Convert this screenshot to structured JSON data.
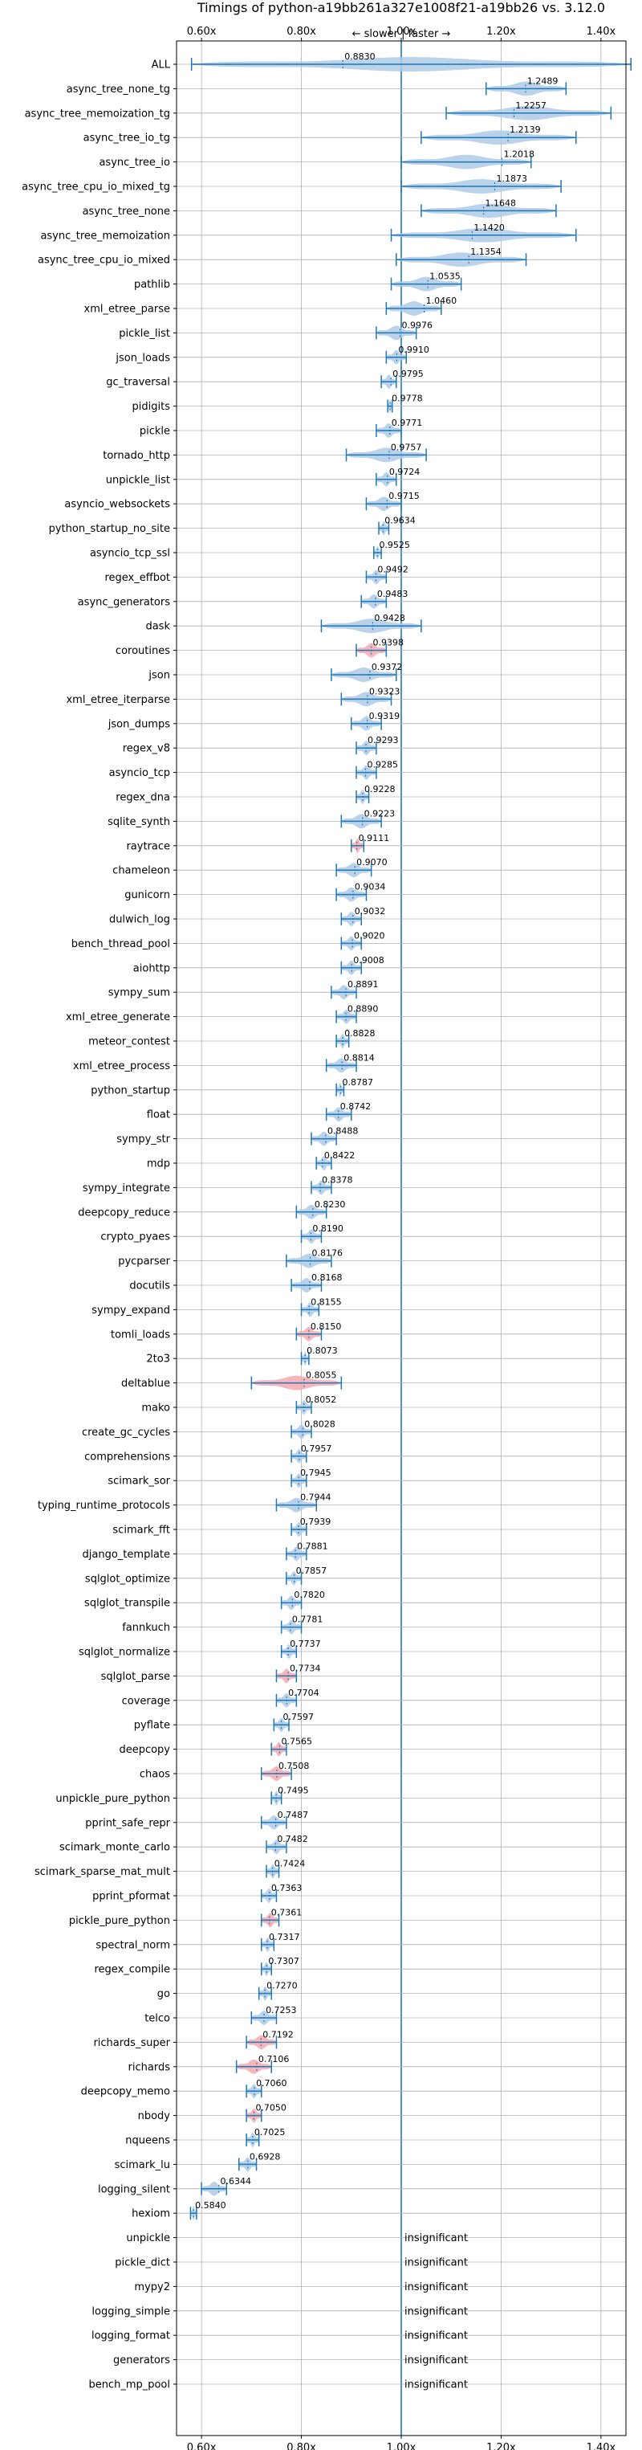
{
  "chart_data": {
    "type": "violin",
    "title": "Timings of python-a19bb261a327e1008f21-a19bb26 vs. 3.12.0",
    "direction_label": "← slower | faster →",
    "xlim": [
      0.55,
      1.45
    ],
    "xticks": [
      "0.60x",
      "0.80x",
      "1.00x",
      "1.20x",
      "1.40x"
    ],
    "xtick_values": [
      0.6,
      0.8,
      1.0,
      1.2,
      1.4
    ],
    "reference_line": 1.0,
    "grid": true,
    "colors": {
      "faster": "#aecbe6",
      "slower": "#f4a9b0",
      "line": "#1f77b4",
      "significant_line": "#1f77b4"
    },
    "insignificant_label": "insignificant",
    "benchmarks": [
      {
        "name": "ALL",
        "value": 0.883,
        "label": "0.8830",
        "lo": 0.58,
        "hi": 1.46,
        "color": "blue"
      },
      {
        "name": "async_tree_none_tg",
        "value": 1.2489,
        "label": "1.2489",
        "lo": 1.17,
        "hi": 1.33,
        "color": "blue"
      },
      {
        "name": "async_tree_memoization_tg",
        "value": 1.2257,
        "label": "1.2257",
        "lo": 1.09,
        "hi": 1.42,
        "color": "blue"
      },
      {
        "name": "async_tree_io_tg",
        "value": 1.2139,
        "label": "1.2139",
        "lo": 1.04,
        "hi": 1.35,
        "color": "blue"
      },
      {
        "name": "async_tree_io",
        "value": 1.2018,
        "label": "1.2018",
        "lo": 1.0,
        "hi": 1.26,
        "color": "blue"
      },
      {
        "name": "async_tree_cpu_io_mixed_tg",
        "value": 1.1873,
        "label": "1.1873",
        "lo": 1.0,
        "hi": 1.32,
        "color": "blue"
      },
      {
        "name": "async_tree_none",
        "value": 1.1648,
        "label": "1.1648",
        "lo": 1.04,
        "hi": 1.31,
        "color": "blue"
      },
      {
        "name": "async_tree_memoization",
        "value": 1.142,
        "label": "1.1420",
        "lo": 0.98,
        "hi": 1.35,
        "color": "blue"
      },
      {
        "name": "async_tree_cpu_io_mixed",
        "value": 1.1354,
        "label": "1.1354",
        "lo": 0.99,
        "hi": 1.25,
        "color": "blue"
      },
      {
        "name": "pathlib",
        "value": 1.0535,
        "label": "1.0535",
        "lo": 0.98,
        "hi": 1.12,
        "color": "blue"
      },
      {
        "name": "xml_etree_parse",
        "value": 1.046,
        "label": "1.0460",
        "lo": 0.97,
        "hi": 1.08,
        "color": "blue"
      },
      {
        "name": "pickle_list",
        "value": 0.9976,
        "label": "0.9976",
        "lo": 0.95,
        "hi": 1.03,
        "color": "blue"
      },
      {
        "name": "json_loads",
        "value": 0.991,
        "label": "0.9910",
        "lo": 0.97,
        "hi": 1.01,
        "color": "blue"
      },
      {
        "name": "gc_traversal",
        "value": 0.9795,
        "label": "0.9795",
        "lo": 0.96,
        "hi": 0.99,
        "color": "blue"
      },
      {
        "name": "pidigits",
        "value": 0.9778,
        "label": "0.9778",
        "lo": 0.973,
        "hi": 0.982,
        "color": "blue"
      },
      {
        "name": "pickle",
        "value": 0.9771,
        "label": "0.9771",
        "lo": 0.95,
        "hi": 1.0,
        "color": "blue"
      },
      {
        "name": "tornado_http",
        "value": 0.9757,
        "label": "0.9757",
        "lo": 0.89,
        "hi": 1.05,
        "color": "blue"
      },
      {
        "name": "unpickle_list",
        "value": 0.9724,
        "label": "0.9724",
        "lo": 0.95,
        "hi": 0.99,
        "color": "blue"
      },
      {
        "name": "asyncio_websockets",
        "value": 0.9715,
        "label": "0.9715",
        "lo": 0.93,
        "hi": 1.0,
        "color": "blue"
      },
      {
        "name": "python_startup_no_site",
        "value": 0.9634,
        "label": "0.9634",
        "lo": 0.955,
        "hi": 0.975,
        "color": "blue"
      },
      {
        "name": "asyncio_tcp_ssl",
        "value": 0.9525,
        "label": "0.9525",
        "lo": 0.945,
        "hi": 0.96,
        "color": "blue"
      },
      {
        "name": "regex_effbot",
        "value": 0.9492,
        "label": "0.9492",
        "lo": 0.93,
        "hi": 0.97,
        "color": "blue"
      },
      {
        "name": "async_generators",
        "value": 0.9483,
        "label": "0.9483",
        "lo": 0.92,
        "hi": 0.97,
        "color": "blue"
      },
      {
        "name": "dask",
        "value": 0.9428,
        "label": "0.9428",
        "lo": 0.84,
        "hi": 1.04,
        "color": "blue"
      },
      {
        "name": "coroutines",
        "value": 0.9398,
        "label": "0.9398",
        "lo": 0.91,
        "hi": 0.97,
        "color": "red"
      },
      {
        "name": "json",
        "value": 0.9372,
        "label": "0.9372",
        "lo": 0.86,
        "hi": 0.99,
        "color": "blue"
      },
      {
        "name": "xml_etree_iterparse",
        "value": 0.9323,
        "label": "0.9323",
        "lo": 0.88,
        "hi": 0.98,
        "color": "blue"
      },
      {
        "name": "json_dumps",
        "value": 0.9319,
        "label": "0.9319",
        "lo": 0.9,
        "hi": 0.96,
        "color": "blue"
      },
      {
        "name": "regex_v8",
        "value": 0.9293,
        "label": "0.9293",
        "lo": 0.91,
        "hi": 0.95,
        "color": "blue"
      },
      {
        "name": "asyncio_tcp",
        "value": 0.9285,
        "label": "0.9285",
        "lo": 0.91,
        "hi": 0.95,
        "color": "blue"
      },
      {
        "name": "regex_dna",
        "value": 0.9228,
        "label": "0.9228",
        "lo": 0.91,
        "hi": 0.935,
        "color": "blue"
      },
      {
        "name": "sqlite_synth",
        "value": 0.9223,
        "label": "0.9223",
        "lo": 0.88,
        "hi": 0.96,
        "color": "blue"
      },
      {
        "name": "raytrace",
        "value": 0.9111,
        "label": "0.9111",
        "lo": 0.9,
        "hi": 0.925,
        "color": "red"
      },
      {
        "name": "chameleon",
        "value": 0.907,
        "label": "0.9070",
        "lo": 0.87,
        "hi": 0.94,
        "color": "blue"
      },
      {
        "name": "gunicorn",
        "value": 0.9034,
        "label": "0.9034",
        "lo": 0.87,
        "hi": 0.93,
        "color": "blue"
      },
      {
        "name": "dulwich_log",
        "value": 0.9032,
        "label": "0.9032",
        "lo": 0.88,
        "hi": 0.92,
        "color": "blue"
      },
      {
        "name": "bench_thread_pool",
        "value": 0.902,
        "label": "0.9020",
        "lo": 0.88,
        "hi": 0.92,
        "color": "blue"
      },
      {
        "name": "aiohttp",
        "value": 0.9008,
        "label": "0.9008",
        "lo": 0.88,
        "hi": 0.92,
        "color": "blue"
      },
      {
        "name": "sympy_sum",
        "value": 0.8891,
        "label": "0.8891",
        "lo": 0.86,
        "hi": 0.91,
        "color": "blue"
      },
      {
        "name": "xml_etree_generate",
        "value": 0.889,
        "label": "0.8890",
        "lo": 0.87,
        "hi": 0.91,
        "color": "blue"
      },
      {
        "name": "meteor_contest",
        "value": 0.8828,
        "label": "0.8828",
        "lo": 0.87,
        "hi": 0.895,
        "color": "blue"
      },
      {
        "name": "xml_etree_process",
        "value": 0.8814,
        "label": "0.8814",
        "lo": 0.85,
        "hi": 0.91,
        "color": "blue"
      },
      {
        "name": "python_startup",
        "value": 0.8787,
        "label": "0.8787",
        "lo": 0.87,
        "hi": 0.885,
        "color": "blue"
      },
      {
        "name": "float",
        "value": 0.8742,
        "label": "0.8742",
        "lo": 0.85,
        "hi": 0.9,
        "color": "blue"
      },
      {
        "name": "sympy_str",
        "value": 0.8488,
        "label": "0.8488",
        "lo": 0.82,
        "hi": 0.87,
        "color": "blue"
      },
      {
        "name": "mdp",
        "value": 0.8422,
        "label": "0.8422",
        "lo": 0.83,
        "hi": 0.86,
        "color": "blue"
      },
      {
        "name": "sympy_integrate",
        "value": 0.8378,
        "label": "0.8378",
        "lo": 0.82,
        "hi": 0.86,
        "color": "blue"
      },
      {
        "name": "deepcopy_reduce",
        "value": 0.823,
        "label": "0.8230",
        "lo": 0.79,
        "hi": 0.85,
        "color": "blue"
      },
      {
        "name": "crypto_pyaes",
        "value": 0.819,
        "label": "0.8190",
        "lo": 0.8,
        "hi": 0.84,
        "color": "blue"
      },
      {
        "name": "pycparser",
        "value": 0.8176,
        "label": "0.8176",
        "lo": 0.77,
        "hi": 0.86,
        "color": "blue"
      },
      {
        "name": "docutils",
        "value": 0.8168,
        "label": "0.8168",
        "lo": 0.78,
        "hi": 0.84,
        "color": "blue"
      },
      {
        "name": "sympy_expand",
        "value": 0.8155,
        "label": "0.8155",
        "lo": 0.8,
        "hi": 0.835,
        "color": "blue"
      },
      {
        "name": "tomli_loads",
        "value": 0.815,
        "label": "0.8150",
        "lo": 0.79,
        "hi": 0.84,
        "color": "red"
      },
      {
        "name": "2to3",
        "value": 0.8073,
        "label": "0.8073",
        "lo": 0.8,
        "hi": 0.815,
        "color": "blue"
      },
      {
        "name": "deltablue",
        "value": 0.8055,
        "label": "0.8055",
        "lo": 0.7,
        "hi": 0.88,
        "color": "red"
      },
      {
        "name": "mako",
        "value": 0.8052,
        "label": "0.8052",
        "lo": 0.79,
        "hi": 0.82,
        "color": "blue"
      },
      {
        "name": "create_gc_cycles",
        "value": 0.8028,
        "label": "0.8028",
        "lo": 0.78,
        "hi": 0.82,
        "color": "blue"
      },
      {
        "name": "comprehensions",
        "value": 0.7957,
        "label": "0.7957",
        "lo": 0.78,
        "hi": 0.81,
        "color": "blue"
      },
      {
        "name": "scimark_sor",
        "value": 0.7945,
        "label": "0.7945",
        "lo": 0.78,
        "hi": 0.81,
        "color": "blue"
      },
      {
        "name": "typing_runtime_protocols",
        "value": 0.7944,
        "label": "0.7944",
        "lo": 0.75,
        "hi": 0.83,
        "color": "blue"
      },
      {
        "name": "scimark_fft",
        "value": 0.7939,
        "label": "0.7939",
        "lo": 0.78,
        "hi": 0.81,
        "color": "blue"
      },
      {
        "name": "django_template",
        "value": 0.7881,
        "label": "0.7881",
        "lo": 0.77,
        "hi": 0.81,
        "color": "blue"
      },
      {
        "name": "sqlglot_optimize",
        "value": 0.7857,
        "label": "0.7857",
        "lo": 0.77,
        "hi": 0.8,
        "color": "blue"
      },
      {
        "name": "sqlglot_transpile",
        "value": 0.782,
        "label": "0.7820",
        "lo": 0.76,
        "hi": 0.8,
        "color": "blue"
      },
      {
        "name": "fannkuch",
        "value": 0.7781,
        "label": "0.7781",
        "lo": 0.76,
        "hi": 0.8,
        "color": "blue"
      },
      {
        "name": "sqlglot_normalize",
        "value": 0.7737,
        "label": "0.7737",
        "lo": 0.76,
        "hi": 0.79,
        "color": "blue"
      },
      {
        "name": "sqlglot_parse",
        "value": 0.7734,
        "label": "0.7734",
        "lo": 0.75,
        "hi": 0.79,
        "color": "red"
      },
      {
        "name": "coverage",
        "value": 0.7704,
        "label": "0.7704",
        "lo": 0.75,
        "hi": 0.79,
        "color": "blue"
      },
      {
        "name": "pyflate",
        "value": 0.7597,
        "label": "0.7597",
        "lo": 0.745,
        "hi": 0.775,
        "color": "blue"
      },
      {
        "name": "deepcopy",
        "value": 0.7565,
        "label": "0.7565",
        "lo": 0.74,
        "hi": 0.77,
        "color": "red"
      },
      {
        "name": "chaos",
        "value": 0.7508,
        "label": "0.7508",
        "lo": 0.72,
        "hi": 0.78,
        "color": "red"
      },
      {
        "name": "unpickle_pure_python",
        "value": 0.7495,
        "label": "0.7495",
        "lo": 0.74,
        "hi": 0.76,
        "color": "blue"
      },
      {
        "name": "pprint_safe_repr",
        "value": 0.7487,
        "label": "0.7487",
        "lo": 0.72,
        "hi": 0.77,
        "color": "blue"
      },
      {
        "name": "scimark_monte_carlo",
        "value": 0.7482,
        "label": "0.7482",
        "lo": 0.73,
        "hi": 0.77,
        "color": "blue"
      },
      {
        "name": "scimark_sparse_mat_mult",
        "value": 0.7424,
        "label": "0.7424",
        "lo": 0.73,
        "hi": 0.755,
        "color": "blue"
      },
      {
        "name": "pprint_pformat",
        "value": 0.7363,
        "label": "0.7363",
        "lo": 0.72,
        "hi": 0.75,
        "color": "blue"
      },
      {
        "name": "pickle_pure_python",
        "value": 0.7361,
        "label": "0.7361",
        "lo": 0.72,
        "hi": 0.755,
        "color": "red"
      },
      {
        "name": "spectral_norm",
        "value": 0.7317,
        "label": "0.7317",
        "lo": 0.72,
        "hi": 0.745,
        "color": "blue"
      },
      {
        "name": "regex_compile",
        "value": 0.7307,
        "label": "0.7307",
        "lo": 0.72,
        "hi": 0.74,
        "color": "blue"
      },
      {
        "name": "go",
        "value": 0.727,
        "label": "0.7270",
        "lo": 0.715,
        "hi": 0.74,
        "color": "blue"
      },
      {
        "name": "telco",
        "value": 0.7253,
        "label": "0.7253",
        "lo": 0.7,
        "hi": 0.75,
        "color": "blue"
      },
      {
        "name": "richards_super",
        "value": 0.7192,
        "label": "0.7192",
        "lo": 0.69,
        "hi": 0.75,
        "color": "red"
      },
      {
        "name": "richards",
        "value": 0.7106,
        "label": "0.7106",
        "lo": 0.67,
        "hi": 0.74,
        "color": "red"
      },
      {
        "name": "deepcopy_memo",
        "value": 0.706,
        "label": "0.7060",
        "lo": 0.69,
        "hi": 0.72,
        "color": "blue"
      },
      {
        "name": "nbody",
        "value": 0.705,
        "label": "0.7050",
        "lo": 0.69,
        "hi": 0.72,
        "color": "red"
      },
      {
        "name": "nqueens",
        "value": 0.7025,
        "label": "0.7025",
        "lo": 0.69,
        "hi": 0.715,
        "color": "blue"
      },
      {
        "name": "scimark_lu",
        "value": 0.6928,
        "label": "0.6928",
        "lo": 0.675,
        "hi": 0.71,
        "color": "blue"
      },
      {
        "name": "logging_silent",
        "value": 0.6344,
        "label": "0.6344",
        "lo": 0.6,
        "hi": 0.65,
        "color": "blue"
      },
      {
        "name": "hexiom",
        "value": 0.584,
        "label": "0.5840",
        "lo": 0.578,
        "hi": 0.59,
        "color": "blue"
      },
      {
        "name": "unpickle",
        "value": null,
        "label": "insignificant"
      },
      {
        "name": "pickle_dict",
        "value": null,
        "label": "insignificant"
      },
      {
        "name": "mypy2",
        "value": null,
        "label": "insignificant"
      },
      {
        "name": "logging_simple",
        "value": null,
        "label": "insignificant"
      },
      {
        "name": "logging_format",
        "value": null,
        "label": "insignificant"
      },
      {
        "name": "generators",
        "value": null,
        "label": "insignificant"
      },
      {
        "name": "bench_mp_pool",
        "value": null,
        "label": "insignificant"
      }
    ]
  }
}
